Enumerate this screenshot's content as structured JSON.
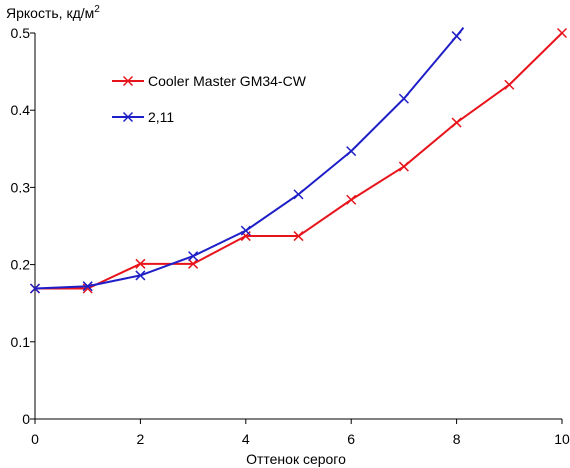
{
  "chart_data": {
    "type": "line",
    "title": "",
    "ylabel": "Яркость, кд/м",
    "ylabel_sup": "2",
    "xlabel": "Оттенок серого",
    "xlim": [
      0,
      10
    ],
    "ylim": [
      0,
      0.5
    ],
    "xticks": [
      0,
      2,
      4,
      6,
      8,
      10
    ],
    "yticks": [
      0,
      0.1,
      0.2,
      0.3,
      0.4,
      0.5
    ],
    "ytick_labels": [
      "0",
      "0.1",
      "0.2",
      "0.3",
      "0.4",
      "0.5"
    ],
    "grid": false,
    "legend_position": "upper-left inside plot",
    "series": [
      {
        "name": "Cooler Master GM34-CW",
        "color": "#e8141c",
        "marker": "x",
        "x": [
          0,
          1,
          2,
          3,
          4,
          5,
          6,
          7,
          8,
          9,
          10
        ],
        "y": [
          0.169,
          0.169,
          0.201,
          0.201,
          0.237,
          0.237,
          0.284,
          0.327,
          0.384,
          0.433,
          0.5
        ]
      },
      {
        "name": "2,11",
        "color": "#1f1fc8",
        "marker": "x",
        "x": [
          0,
          1,
          2,
          3,
          4,
          5,
          6,
          7,
          8
        ],
        "y": [
          0.169,
          0.172,
          0.186,
          0.211,
          0.244,
          0.291,
          0.347,
          0.415,
          0.496
        ],
        "curve_end": [
          8.13,
          0.507
        ]
      }
    ]
  }
}
